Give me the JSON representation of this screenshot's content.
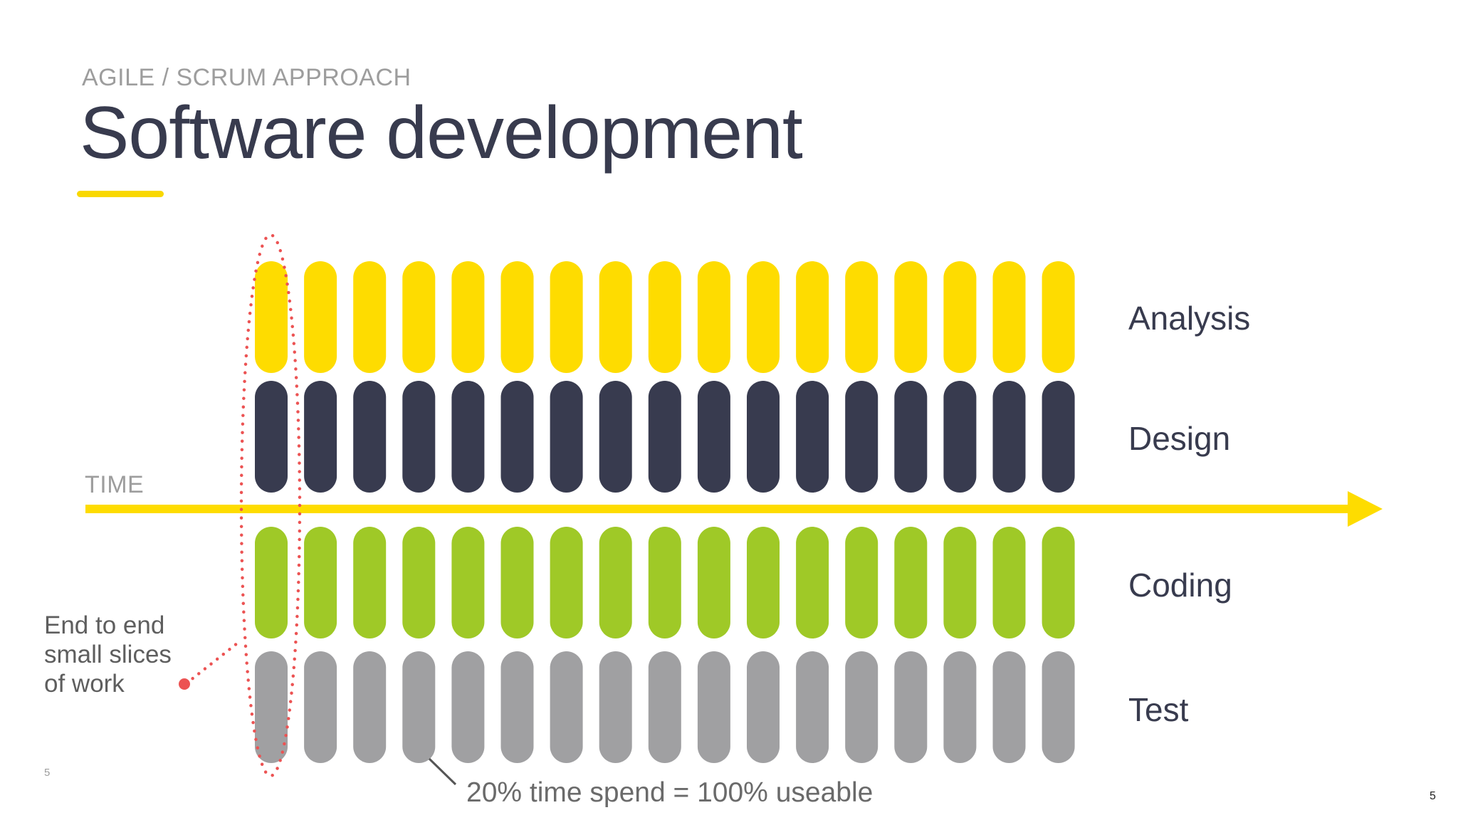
{
  "header": {
    "subtitle": "AGILE / SCRUM APPROACH",
    "title": "Software development"
  },
  "diagram": {
    "column_count": 17,
    "time_label": "TIME",
    "rows": [
      {
        "label": "Analysis",
        "color": "#fedc00"
      },
      {
        "label": "Design",
        "color": "#383b4f"
      },
      {
        "label": "Coding",
        "color": "#9fc927"
      },
      {
        "label": "Test",
        "color": "#a0a0a2"
      }
    ],
    "axis_color": "#fedc00",
    "highlight_color": "#ec5353"
  },
  "annotation": {
    "lines": [
      "End to end",
      "small slices",
      "of work"
    ]
  },
  "caption": "20% time spend = 100% useable",
  "page": {
    "number_left": "5",
    "number_right": "5"
  }
}
